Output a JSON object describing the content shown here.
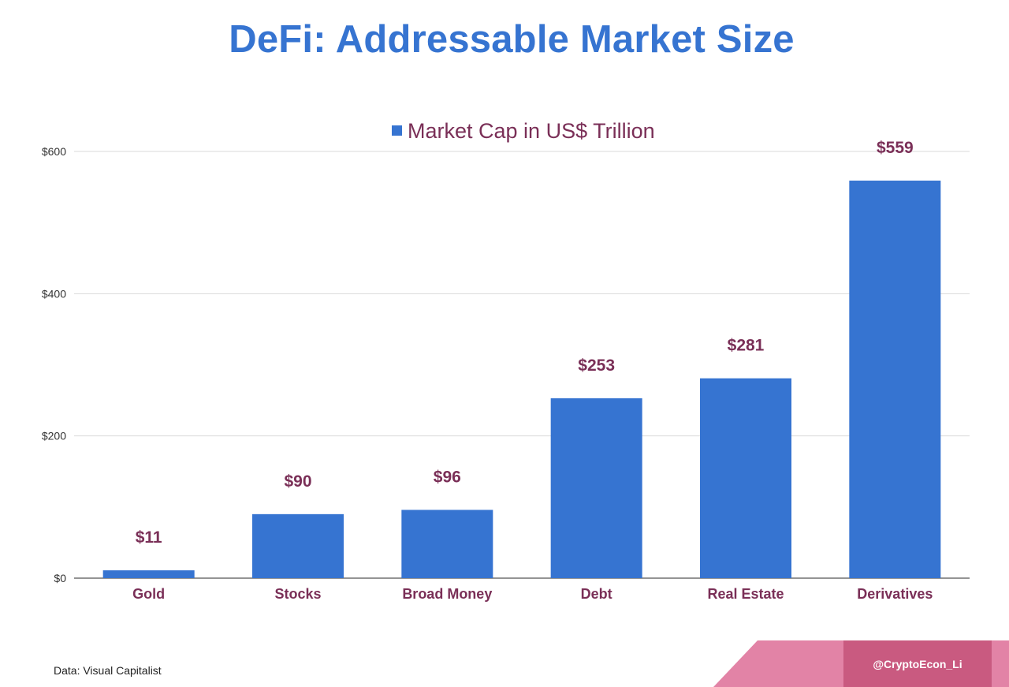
{
  "title": "DeFi: Addressable Market Size",
  "source_note": "Data: Visual Capitalist",
  "handle": "@CryptoEcon_Li",
  "colors": {
    "title": "#3674d1",
    "bar": "#3674d1",
    "label": "#7a2f57",
    "footer_light": "#e283a6",
    "footer_dark": "#c95a80"
  },
  "chart_data": {
    "type": "bar",
    "categories": [
      "Gold",
      "Stocks",
      "Broad Money",
      "Debt",
      "Real Estate",
      "Derivatives"
    ],
    "series": [
      {
        "name": "Market Cap in US$ Trillion",
        "values": [
          11,
          90,
          96,
          253,
          281,
          559
        ]
      }
    ],
    "value_labels": [
      "$11",
      "$90",
      "$96",
      "$253",
      "$281",
      "$559"
    ],
    "y_ticks": [
      0,
      200,
      400,
      600
    ],
    "y_tick_labels": [
      "$0",
      "$200",
      "$400",
      "$600"
    ],
    "ylim": [
      0,
      600
    ],
    "grid": true,
    "legend_position": "top-center"
  }
}
